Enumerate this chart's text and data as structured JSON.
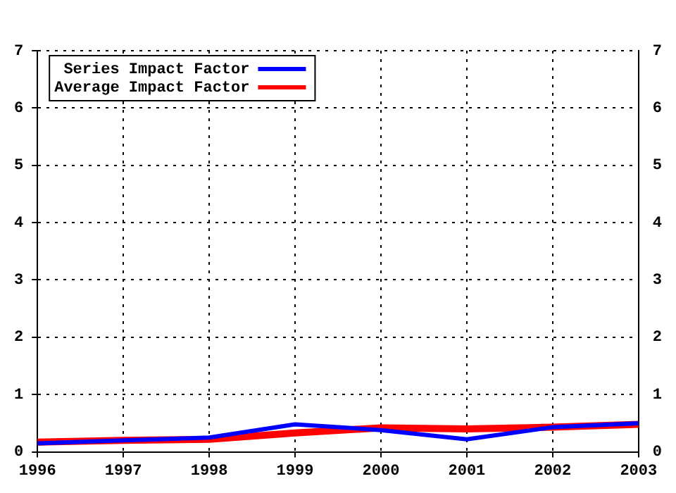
{
  "chart_data": {
    "type": "line",
    "x": [
      1996,
      1997,
      1998,
      1999,
      2000,
      2001,
      2002,
      2003
    ],
    "series": [
      {
        "name": "Series Impact Factor",
        "color": "#0000ff",
        "values": [
          0.15,
          0.2,
          0.25,
          0.48,
          0.38,
          0.22,
          0.43,
          0.5
        ]
      },
      {
        "name": "Average Impact Factor",
        "color": "#ff0000",
        "values": [
          0.17,
          0.2,
          0.22,
          0.33,
          0.42,
          0.4,
          0.43,
          0.48
        ]
      }
    ],
    "xlim": [
      1996,
      2003
    ],
    "xticks": [
      1996,
      1997,
      1998,
      1999,
      2000,
      2001,
      2002,
      2003
    ],
    "ylim": [
      0,
      7
    ],
    "yticks": [
      0,
      1,
      2,
      3,
      4,
      5,
      6,
      7
    ],
    "y2lim": [
      0,
      7
    ],
    "y2ticks": [
      0,
      1,
      2,
      3,
      4,
      5,
      6,
      7
    ],
    "grid": true,
    "legend": "top left",
    "marker": "none",
    "line_style": "solid"
  }
}
